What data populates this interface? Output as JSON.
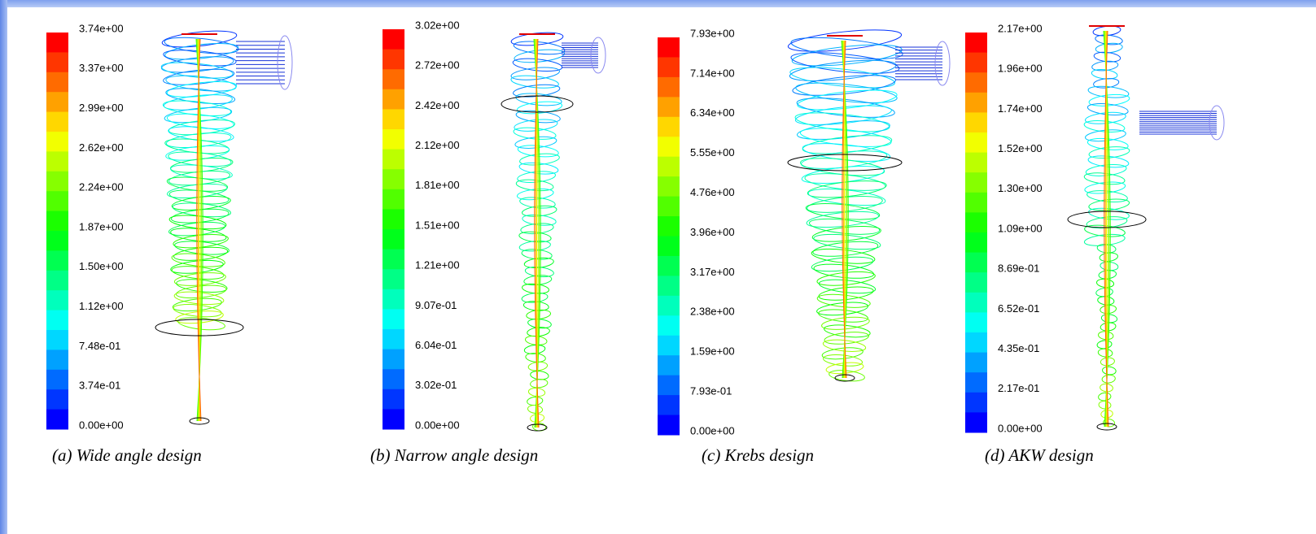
{
  "panels": [
    {
      "ticks": [
        "3.74e+00",
        "3.37e+00",
        "2.99e+00",
        "2.62e+00",
        "2.24e+00",
        "1.87e+00",
        "1.50e+00",
        "1.12e+00",
        "7.48e-01",
        "3.74e-01",
        "0.00e+00"
      ],
      "caption": "(a) Wide angle design"
    },
    {
      "ticks": [
        "3.02e+00",
        "2.72e+00",
        "2.42e+00",
        "2.12e+00",
        "1.81e+00",
        "1.51e+00",
        "1.21e+00",
        "9.07e-01",
        "6.04e-01",
        "3.02e-01",
        "0.00e+00"
      ],
      "caption": "(b) Narrow angle design"
    },
    {
      "ticks": [
        "7.93e+00",
        "7.14e+00",
        "6.34e+00",
        "5.55e+00",
        "4.76e+00",
        "3.96e+00",
        "3.17e+00",
        "2.38e+00",
        "1.59e+00",
        "7.93e-01",
        "0.00e+00"
      ],
      "caption": "(c) Krebs design"
    },
    {
      "ticks": [
        "2.17e+00",
        "1.96e+00",
        "1.74e+00",
        "1.52e+00",
        "1.30e+00",
        "1.09e+00",
        "8.69e-01",
        "6.52e-01",
        "4.35e-01",
        "2.17e-01",
        "0.00e+00"
      ],
      "caption": "(d) AKW design"
    }
  ]
}
